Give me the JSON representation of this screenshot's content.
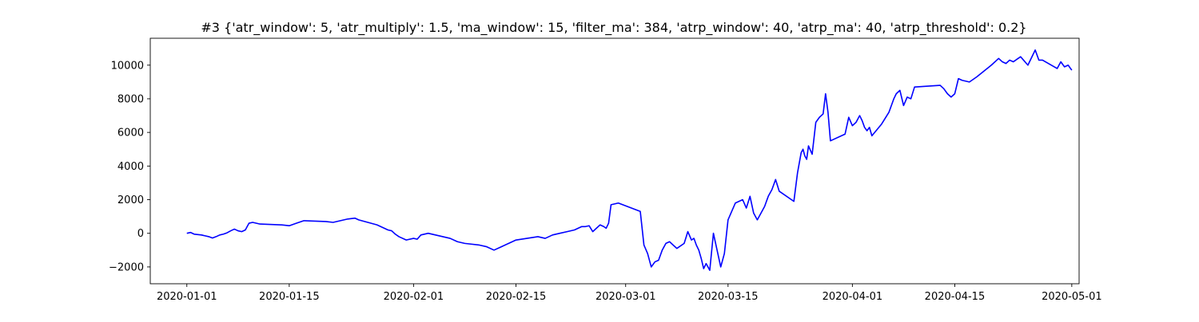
{
  "chart_data": {
    "type": "line",
    "title": "#3 {'atr_window': 5, 'atr_multiply': 1.5, 'ma_window': 15, 'filter_ma': 384, 'atrp_window': 40, 'atrp_ma': 40, 'atrp_threshold': 0.2}",
    "xlabel": "",
    "ylabel": "",
    "x_axis_type": "date",
    "xlim": [
      "2019-12-27",
      "2020-05-02"
    ],
    "ylim": [
      -3000,
      11600
    ],
    "x_ticks": [
      "2020-01-01",
      "2020-01-15",
      "2020-02-01",
      "2020-02-15",
      "2020-03-01",
      "2020-03-15",
      "2020-04-01",
      "2020-04-15",
      "2020-05-01"
    ],
    "y_ticks": [
      -2000,
      0,
      2000,
      4000,
      6000,
      8000,
      10000
    ],
    "y_tick_labels": [
      "−2000",
      "0",
      "2000",
      "4000",
      "6000",
      "8000",
      "10000"
    ],
    "grid": false,
    "legend": "none",
    "colors": {
      "line": "#0000ff",
      "axes": "#000000",
      "background": "#ffffff"
    },
    "series": [
      {
        "color": "#0000ff",
        "x": [
          "2020-01-01",
          "2020-01-01",
          "2020-01-02",
          "2020-01-03",
          "2020-01-03",
          "2020-01-04",
          "2020-01-04",
          "2020-01-05",
          "2020-01-05",
          "2020-01-06",
          "2020-01-06",
          "2020-01-07",
          "2020-01-07",
          "2020-01-08",
          "2020-01-08",
          "2020-01-09",
          "2020-01-09",
          "2020-01-10",
          "2020-01-11",
          "2020-01-14",
          "2020-01-15",
          "2020-01-16",
          "2020-01-17",
          "2020-01-20",
          "2020-01-21",
          "2020-01-22",
          "2020-01-23",
          "2020-01-24",
          "2020-01-24",
          "2020-01-27",
          "2020-01-28",
          "2020-01-28",
          "2020-01-29",
          "2020-01-29",
          "2020-01-30",
          "2020-01-31",
          "2020-02-01",
          "2020-02-01",
          "2020-02-02",
          "2020-02-03",
          "2020-02-04",
          "2020-02-05",
          "2020-02-06",
          "2020-02-07",
          "2020-02-08",
          "2020-02-10",
          "2020-02-11",
          "2020-02-12",
          "2020-02-13",
          "2020-02-14",
          "2020-02-15",
          "2020-02-18",
          "2020-02-19",
          "2020-02-20",
          "2020-02-21",
          "2020-02-22",
          "2020-02-23",
          "2020-02-23",
          "2020-02-24",
          "2020-02-24",
          "2020-02-25",
          "2020-02-25",
          "2020-02-26",
          "2020-02-26",
          "2020-02-27",
          "2020-02-27",
          "2020-02-27",
          "2020-02-28",
          "2020-02-29",
          "2020-03-03",
          "2020-03-03",
          "2020-03-04",
          "2020-03-04",
          "2020-03-05",
          "2020-03-05",
          "2020-03-06",
          "2020-03-06",
          "2020-03-07",
          "2020-03-07",
          "2020-03-08",
          "2020-03-09",
          "2020-03-09",
          "2020-03-10",
          "2020-03-10",
          "2020-03-10",
          "2020-03-11",
          "2020-03-11",
          "2020-03-11",
          "2020-03-12",
          "2020-03-12",
          "2020-03-13",
          "2020-03-13",
          "2020-03-14",
          "2020-03-14",
          "2020-03-15",
          "2020-03-16",
          "2020-03-17",
          "2020-03-17",
          "2020-03-18",
          "2020-03-18",
          "2020-03-19",
          "2020-03-20",
          "2020-03-20",
          "2020-03-21",
          "2020-03-21",
          "2020-03-22",
          "2020-03-24",
          "2020-03-24",
          "2020-03-25",
          "2020-03-25",
          "2020-03-25",
          "2020-03-25",
          "2020-03-26",
          "2020-03-26",
          "2020-03-27",
          "2020-03-27",
          "2020-03-28",
          "2020-03-28",
          "2020-03-28",
          "2020-03-29",
          "2020-03-31",
          "2020-03-31",
          "2020-04-01",
          "2020-04-01",
          "2020-04-02",
          "2020-04-02",
          "2020-04-02",
          "2020-04-03",
          "2020-04-03",
          "2020-04-03",
          "2020-04-05",
          "2020-04-06",
          "2020-04-06",
          "2020-04-06",
          "2020-04-07",
          "2020-04-07",
          "2020-04-08",
          "2020-04-08",
          "2020-04-09",
          "2020-04-09",
          "2020-04-13",
          "2020-04-13",
          "2020-04-14",
          "2020-04-14",
          "2020-04-15",
          "2020-04-15",
          "2020-04-16",
          "2020-04-17",
          "2020-04-18",
          "2020-04-20",
          "2020-04-21",
          "2020-04-21",
          "2020-04-22",
          "2020-04-22",
          "2020-04-23",
          "2020-04-24",
          "2020-04-25",
          "2020-04-26",
          "2020-04-26",
          "2020-04-27",
          "2020-04-29",
          "2020-04-29",
          "2020-04-30",
          "2020-04-30",
          "2020-05-01"
        ],
        "values": [
          0,
          50,
          -50,
          -100,
          -150,
          -200,
          -280,
          -200,
          -100,
          -50,
          30,
          150,
          250,
          150,
          100,
          200,
          600,
          650,
          550,
          500,
          450,
          600,
          750,
          700,
          650,
          750,
          850,
          900,
          800,
          500,
          300,
          200,
          150,
          -50,
          -200,
          -400,
          -300,
          -350,
          -100,
          0,
          -100,
          -200,
          -300,
          -500,
          -600,
          -700,
          -800,
          -1000,
          -800,
          -600,
          -400,
          -200,
          -300,
          -100,
          0,
          100,
          200,
          300,
          400,
          400,
          450,
          100,
          300,
          500,
          400,
          300,
          600,
          1700,
          1800,
          1300,
          -700,
          -1200,
          -2000,
          -1700,
          -1600,
          -1000,
          -600,
          -500,
          -700,
          -900,
          -600,
          100,
          -400,
          -300,
          -700,
          -1000,
          -1500,
          -2100,
          -1800,
          -2200,
          0,
          -1000,
          -2000,
          -1200,
          800,
          1800,
          2000,
          1500,
          2200,
          1200,
          800,
          1600,
          2200,
          2600,
          3200,
          2500,
          1900,
          3600,
          4800,
          5000,
          4600,
          4400,
          5200,
          4700,
          6600,
          6900,
          7100,
          8300,
          7200,
          5500,
          5900,
          6900,
          6400,
          6600,
          7000,
          6700,
          6300,
          6100,
          6300,
          5800,
          6500,
          7200,
          7600,
          8000,
          8300,
          8500,
          7600,
          8100,
          8000,
          8700,
          8800,
          8600,
          8300,
          8100,
          8300,
          9200,
          9100,
          9000,
          9300,
          10000,
          10400,
          10200,
          10100,
          10300,
          10200,
          10500,
          10000,
          10900,
          10300,
          10300,
          9800,
          10200,
          9900,
          10000,
          9700
        ]
      }
    ]
  }
}
